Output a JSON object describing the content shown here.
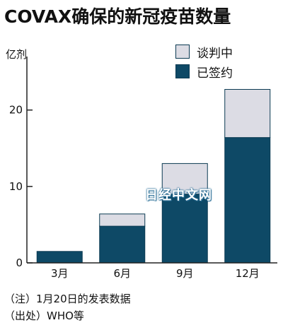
{
  "title": "COVAX确保的新冠疫苗数量",
  "colors": {
    "signed": "#0e4966",
    "negotiating": "#dcdce4",
    "stroke": "#0b3a52",
    "axis": "#222222"
  },
  "watermark": "日经中文网",
  "notes": [
    "（注）1月20日的发表数据",
    "（出处）WHO等"
  ],
  "chart_data": {
    "type": "bar",
    "stacked": true,
    "ylabel": "亿剂",
    "categories": [
      "3月",
      "6月",
      "9月",
      "12月"
    ],
    "yticks": [
      0,
      10,
      20
    ],
    "ylim": [
      0,
      27
    ],
    "grid": false,
    "legend_position": "top-right",
    "series": [
      {
        "name": "已签约",
        "values": [
          1.5,
          4.8,
          9.0,
          16.4
        ]
      },
      {
        "name": "谈判中",
        "values": [
          0,
          1.6,
          4.0,
          6.3
        ]
      }
    ],
    "legend_order": [
      "谈判中",
      "已签约"
    ]
  }
}
